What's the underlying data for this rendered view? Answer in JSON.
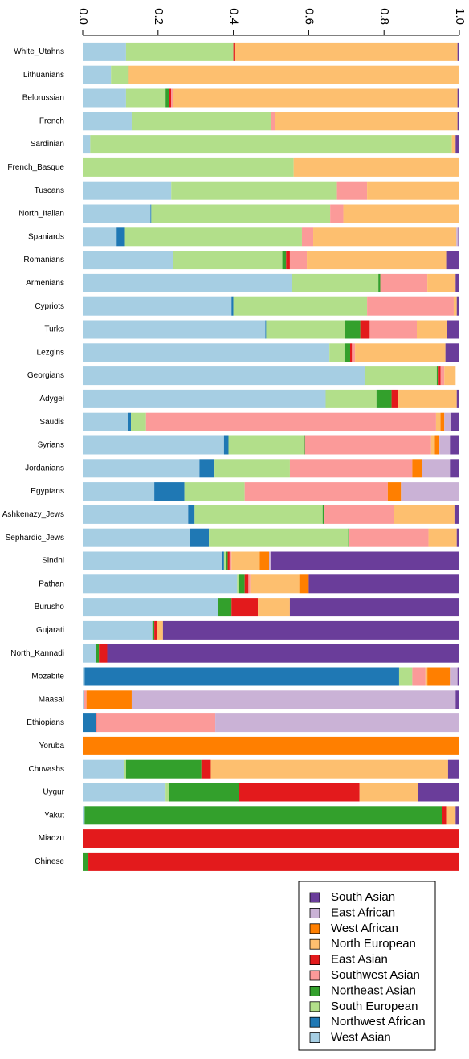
{
  "chart_data": {
    "type": "bar",
    "orientation": "horizontal",
    "stacked": true,
    "title": "",
    "xlabel": "",
    "ylabel": "",
    "xlim": [
      0,
      1
    ],
    "x_ticks": [
      "0.0",
      "0.2",
      "0.4",
      "0.6",
      "0.8",
      "1.0"
    ],
    "x_axis_position": "top",
    "grid": false,
    "legend_position": "bottom-right",
    "categories": [
      "White_Utahns",
      "Lithuanians",
      "Belorussian",
      "French",
      "Sardinian",
      "French_Basque",
      "Tuscans",
      "North_Italian",
      "Spaniards",
      "Romanians",
      "Armenians",
      "Cypriots",
      "Turks",
      "Lezgins",
      "Georgians",
      "Adygei",
      "Saudis",
      "Syrians",
      "Jordanians",
      "Egyptans",
      "Ashkenazy_Jews",
      "Sephardic_Jews",
      "Sindhi",
      "Pathan",
      "Burusho",
      "Gujarati",
      "North_Kannadi",
      "Mozabite",
      "Maasai",
      "Ethiopians",
      "Yoruba",
      "Chuvashs",
      "Uygur",
      "Yakut",
      "Miaozu",
      "Chinese"
    ],
    "series": [
      {
        "name": "West Asian",
        "color": "#a6cee3",
        "values": [
          0.115,
          0.075,
          0.115,
          0.13,
          0.02,
          0,
          0.235,
          0.18,
          0.09,
          0.24,
          0.555,
          0.395,
          0.485,
          0.655,
          0.75,
          0.645,
          0.12,
          0.375,
          0.31,
          0.19,
          0.28,
          0.285,
          0.37,
          0.41,
          0.36,
          0.185,
          0.035,
          0.005,
          0.002,
          0,
          0,
          0.11,
          0.22,
          0.005,
          0,
          0
        ]
      },
      {
        "name": "Northwest African",
        "color": "#1f78b4",
        "values": [
          0,
          0,
          0,
          0,
          0,
          0,
          0,
          0.002,
          0.022,
          0,
          0,
          0.005,
          0.002,
          0,
          0,
          0,
          0.008,
          0.012,
          0.04,
          0.08,
          0.017,
          0.05,
          0.005,
          0,
          0,
          0,
          0,
          0.835,
          0,
          0.035,
          0,
          0,
          0,
          0,
          0,
          0
        ]
      },
      {
        "name": "South European",
        "color": "#b2df8a",
        "values": [
          0.285,
          0.045,
          0.105,
          0.37,
          0.96,
          0.56,
          0.44,
          0.475,
          0.47,
          0.29,
          0.23,
          0.355,
          0.21,
          0.04,
          0.19,
          0.135,
          0.04,
          0.2,
          0.2,
          0.16,
          0.34,
          0.37,
          0.005,
          0.005,
          0,
          0,
          0,
          0.035,
          0,
          0,
          0,
          0.005,
          0.01,
          0,
          0,
          0
        ]
      },
      {
        "name": "Northeast Asian",
        "color": "#33a02c",
        "values": [
          0,
          0.002,
          0.01,
          0,
          0,
          0,
          0,
          0,
          0,
          0.01,
          0.005,
          0,
          0.04,
          0.015,
          0.005,
          0.04,
          0,
          0.003,
          0,
          0,
          0.005,
          0.003,
          0.005,
          0.015,
          0.035,
          0.005,
          0.008,
          0,
          0,
          0,
          0,
          0.2,
          0.185,
          0.95,
          0,
          0.015
        ]
      },
      {
        "name": "East Asian",
        "color": "#e31a1c",
        "values": [
          0.005,
          0,
          0.005,
          0,
          0,
          0,
          0,
          0,
          0,
          0.01,
          0,
          0,
          0.025,
          0.005,
          0.005,
          0.018,
          0,
          0,
          0,
          0,
          0,
          0,
          0.005,
          0.01,
          0.07,
          0.008,
          0.022,
          0,
          0,
          0.002,
          0,
          0.025,
          0.32,
          0.01,
          1,
          0.985
        ]
      },
      {
        "name": "Southwest Asian",
        "color": "#fb9a99",
        "values": [
          0,
          0,
          0.005,
          0.01,
          0,
          0,
          0.08,
          0.035,
          0.03,
          0.045,
          0.125,
          0.23,
          0.125,
          0.008,
          0.01,
          0,
          0.77,
          0.335,
          0.325,
          0.38,
          0.185,
          0.21,
          0.005,
          0.005,
          0,
          0,
          0,
          0.035,
          0.008,
          0.315,
          0,
          0,
          0,
          0,
          0,
          0
        ]
      },
      {
        "name": "North European",
        "color": "#fdbf6f",
        "values": [
          0.59,
          0.878,
          0.755,
          0.485,
          0.01,
          0.44,
          0.245,
          0.31,
          0.38,
          0.37,
          0.075,
          0.008,
          0.08,
          0.24,
          0.03,
          0.155,
          0.012,
          0.01,
          0,
          0,
          0.16,
          0.075,
          0.075,
          0.13,
          0.085,
          0.015,
          0,
          0.005,
          0,
          0,
          0,
          0.63,
          0.155,
          0.025,
          0,
          0
        ]
      },
      {
        "name": "West African",
        "color": "#ff7f00",
        "values": [
          0,
          0,
          0,
          0,
          0,
          0,
          0,
          0,
          0,
          0,
          0,
          0,
          0,
          0,
          0,
          0,
          0.01,
          0.012,
          0.025,
          0.035,
          0,
          0,
          0.025,
          0.025,
          0,
          0,
          0,
          0.06,
          0.12,
          0,
          1,
          0,
          0,
          0,
          0,
          0
        ]
      },
      {
        "name": "East African",
        "color": "#cab2d6",
        "values": [
          0,
          0,
          0,
          0,
          0,
          0,
          0,
          0,
          0.005,
          0,
          0,
          0,
          0,
          0,
          0,
          0,
          0.018,
          0.028,
          0.075,
          0.155,
          0,
          0,
          0.005,
          0,
          0,
          0,
          0,
          0.02,
          0.86,
          0.648,
          0,
          0,
          0,
          0,
          0,
          0
        ]
      },
      {
        "name": "South Asian",
        "color": "#6a3d9a",
        "values": [
          0.005,
          0,
          0.005,
          0.005,
          0.01,
          0,
          0,
          0,
          0.003,
          0.035,
          0.01,
          0.007,
          0.033,
          0.037,
          0,
          0.007,
          0.022,
          0.025,
          0.025,
          0,
          0.013,
          0.007,
          0.5,
          0.4,
          0.45,
          0.787,
          0.935,
          0.005,
          0.01,
          0,
          0,
          0.03,
          0.11,
          0.01,
          0,
          0
        ]
      }
    ],
    "legend_order": [
      "South Asian",
      "East African",
      "West African",
      "North European",
      "East Asian",
      "Southwest Asian",
      "Northeast Asian",
      "South European",
      "Northwest African",
      "West Asian"
    ]
  }
}
